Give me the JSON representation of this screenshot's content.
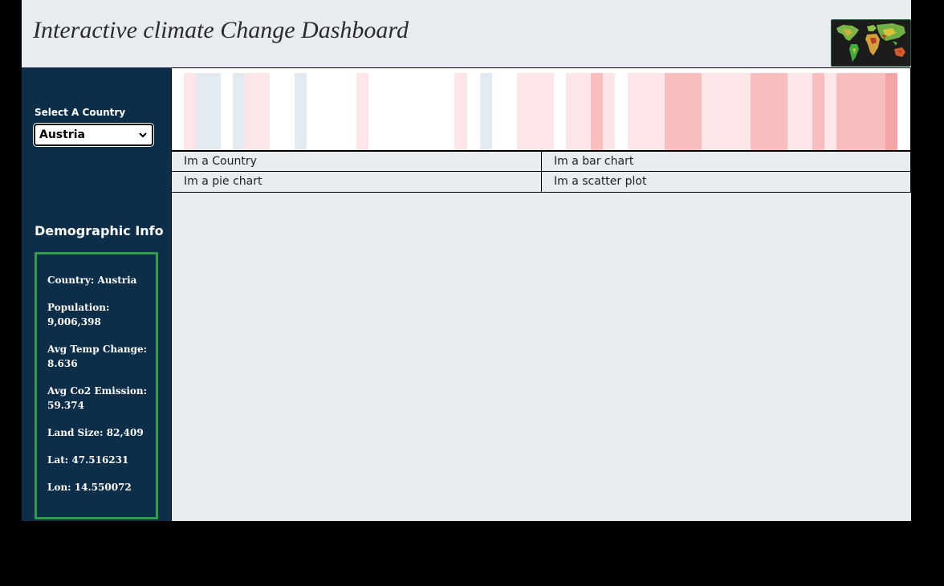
{
  "header": {
    "title": "Interactive climate Change Dashboard",
    "logo_icon": "world-map-icon"
  },
  "sidebar": {
    "select_label": "Select A Country",
    "selected_country": "Austria",
    "demographic_heading": "Demographic Info",
    "demographics": [
      "Country: Austria",
      "Population: 9,006,398",
      "Avg Temp Change: 8.636",
      "Avg Co2 Emission: 59.374",
      "Land Size: 82,409",
      "Lat: 47.516231",
      "Lon: 14.550072"
    ]
  },
  "main": {
    "panels": {
      "country": "Im a Country",
      "bar_chart": "Im a bar chart",
      "pie_chart": "Im a pie chart",
      "scatter_plot": "Im a scatter plot"
    }
  },
  "colors": {
    "sidebar_bg": "#0c2e48",
    "box_border": "#2e9e4a",
    "stripe_warm_light": "#fde6e7",
    "stripe_warm_mid": "#f8bebe",
    "stripe_warm_dark": "#f4a4a4",
    "stripe_cool": "#e4eaf2"
  }
}
